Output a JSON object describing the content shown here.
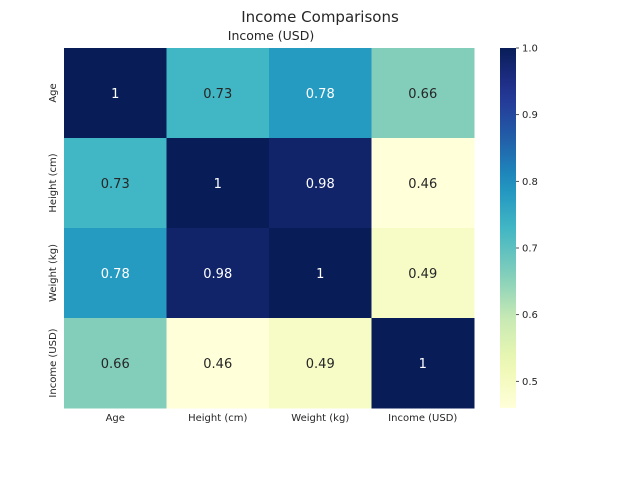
{
  "chart_data": {
    "type": "heatmap",
    "title": "Income Comparisons",
    "subtitle": "Income (USD)",
    "x_categories": [
      "Age",
      "Height (cm)",
      "Weight (kg)",
      "Income (USD)"
    ],
    "y_categories": [
      "Age",
      "Height (cm)",
      "Weight (kg)",
      "Income (USD)"
    ],
    "values": [
      [
        1,
        0.73,
        0.78,
        0.66
      ],
      [
        0.73,
        1,
        0.98,
        0.46
      ],
      [
        0.78,
        0.98,
        1,
        0.49
      ],
      [
        0.66,
        0.46,
        0.49,
        1
      ]
    ],
    "value_labels": [
      [
        "1",
        "0.73",
        "0.78",
        "0.66"
      ],
      [
        "0.73",
        "1",
        "0.98",
        "0.46"
      ],
      [
        "0.78",
        "0.98",
        "1",
        "0.49"
      ],
      [
        "0.66",
        "0.46",
        "0.49",
        "1"
      ]
    ],
    "colorscale": "YlGnBu",
    "vmin": 0.46,
    "vmax": 1.0,
    "colorbar_ticks": [
      "0.5",
      "0.6",
      "0.7",
      "0.8",
      "0.9",
      "1.0"
    ],
    "colorbar_tick_values": [
      0.5,
      0.6,
      0.7,
      0.8,
      0.9,
      1.0
    ],
    "legend_position": "right",
    "grid": false
  }
}
